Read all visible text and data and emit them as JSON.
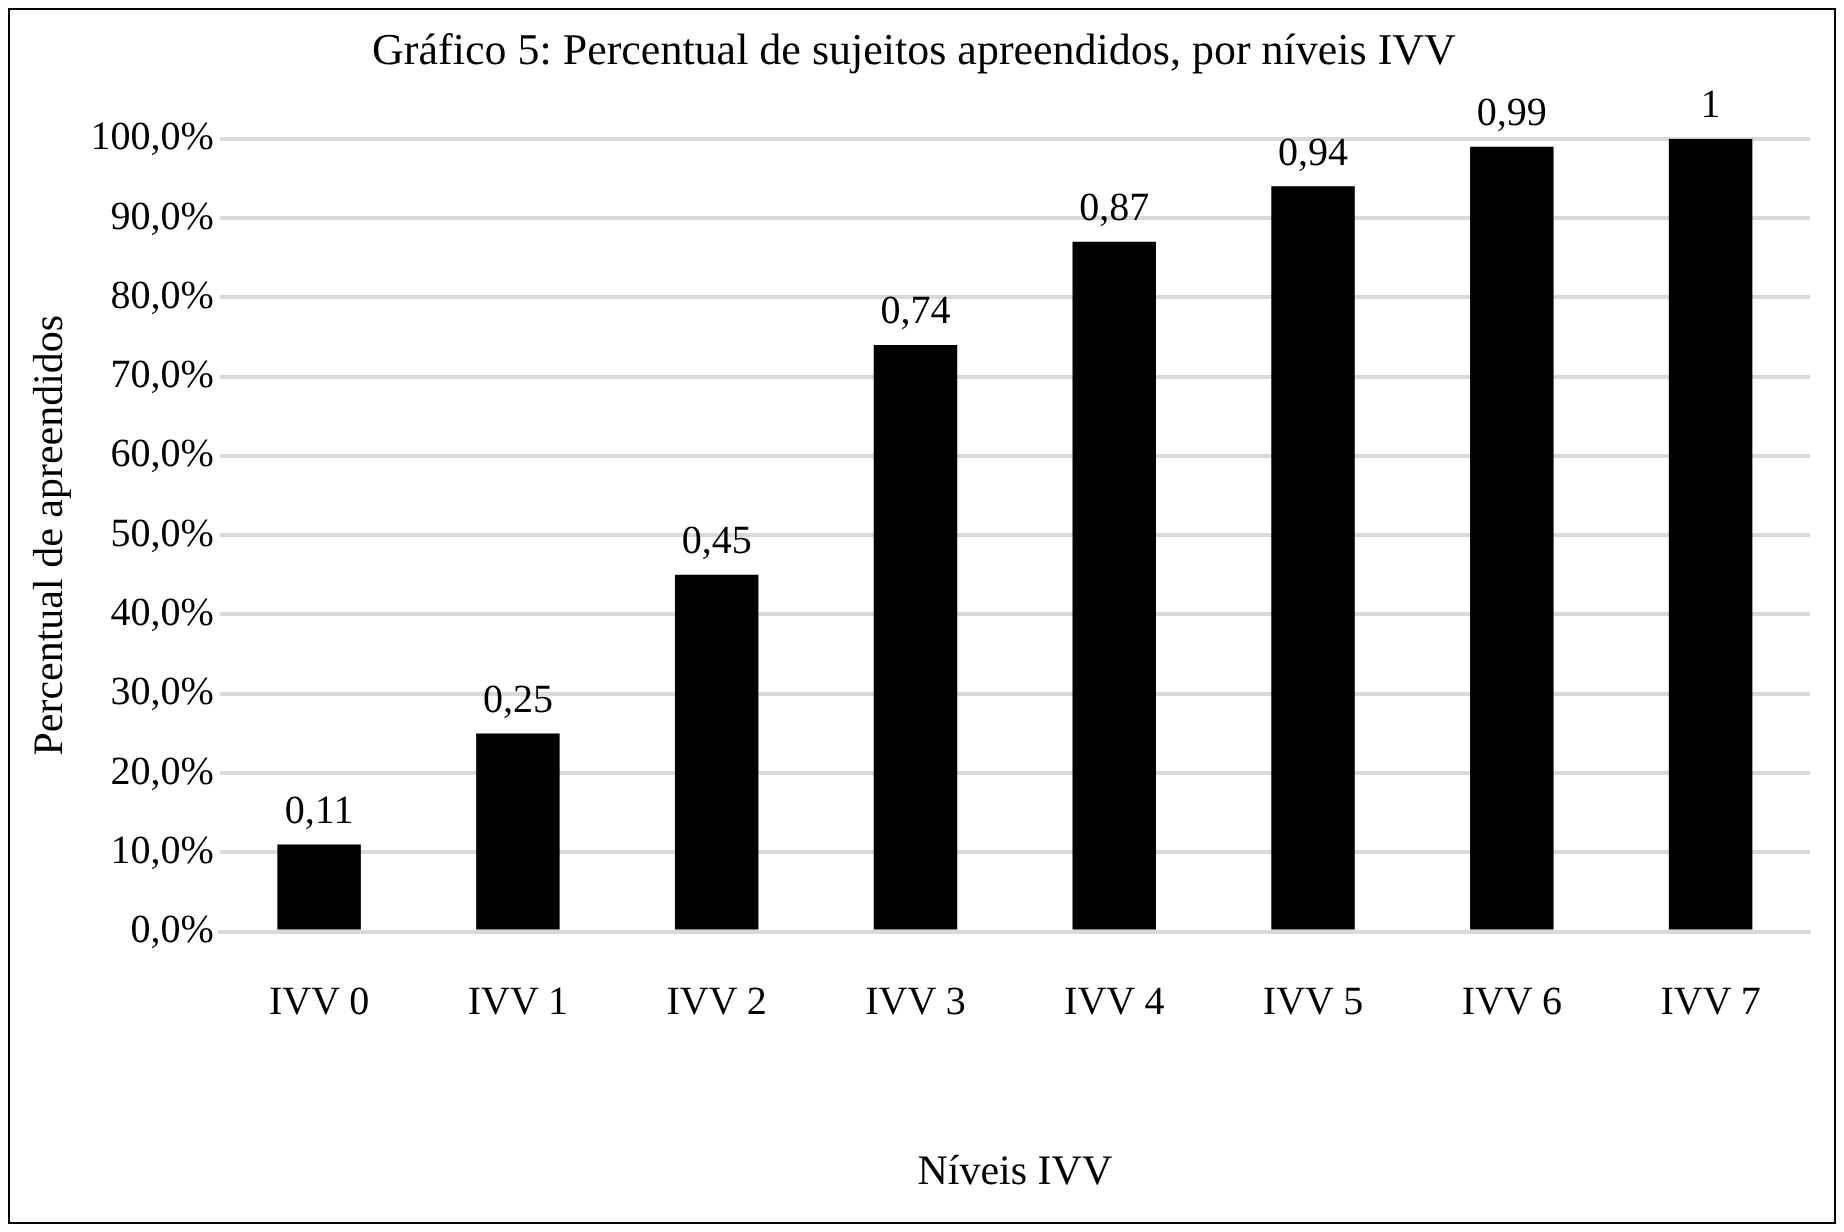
{
  "chart_data": {
    "type": "bar",
    "title": "Gráfico 5: Percentual de sujeitos apreendidos, por níveis IVV",
    "xlabel": "Níveis IVV",
    "ylabel": "Percentual de apreendidos",
    "categories": [
      "IVV 0",
      "IVV 1",
      "IVV 2",
      "IVV 3",
      "IVV 4",
      "IVV 5",
      "IVV 6",
      "IVV 7"
    ],
    "values": [
      0.11,
      0.25,
      0.45,
      0.74,
      0.87,
      0.94,
      0.99,
      1
    ],
    "value_labels": [
      "0,11",
      "0,25",
      "0,45",
      "0,74",
      "0,87",
      "0,94",
      "0,99",
      "1"
    ],
    "color": "#000000",
    "ylim": [
      0,
      1
    ],
    "yticks": [
      {
        "value": 0,
        "label": "0,0%"
      },
      {
        "value": 0.1,
        "label": "10,0%"
      },
      {
        "value": 0.2,
        "label": "20,0%"
      },
      {
        "value": 0.3,
        "label": "30,0%"
      },
      {
        "value": 0.4,
        "label": "40,0%"
      },
      {
        "value": 0.5,
        "label": "50,0%"
      },
      {
        "value": 0.6,
        "label": "60,0%"
      },
      {
        "value": 0.7,
        "label": "70,0%"
      },
      {
        "value": 0.8,
        "label": "80,0%"
      },
      {
        "value": 0.9,
        "label": "90,0%"
      },
      {
        "value": 1,
        "label": "100,0%"
      }
    ],
    "grid": "y"
  }
}
